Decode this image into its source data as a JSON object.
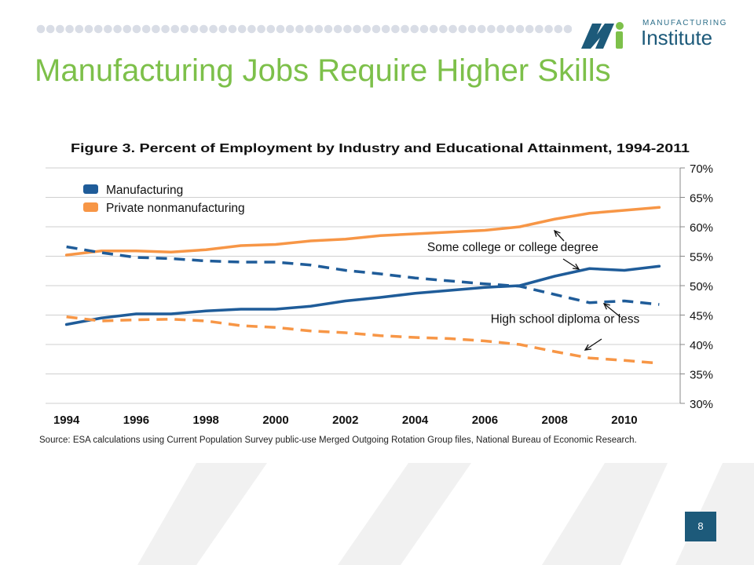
{
  "slide": {
    "title": "Manufacturing Jobs Require Higher Skills",
    "page_number": "8"
  },
  "logo": {
    "sub": "MANUFACTURING",
    "main": "Institute"
  },
  "colors": {
    "title_green": "#7dc04a",
    "navy": "#1d5a7a",
    "manufacturing": "#1f5c99",
    "nonmanufacturing": "#f79646",
    "dots": "#d9dde6",
    "bg_shapes": "#f1f1f1"
  },
  "chart_data": {
    "type": "line",
    "title": "Figure 3. Percent of Employment by Industry and Educational Attainment, 1994-2011",
    "xlabel": "",
    "ylabel": "",
    "x": [
      1994,
      1995,
      1996,
      1997,
      1998,
      1999,
      2000,
      2001,
      2002,
      2003,
      2004,
      2005,
      2006,
      2007,
      2008,
      2009,
      2010,
      2011
    ],
    "x_ticks": [
      1994,
      1996,
      1998,
      2000,
      2002,
      2004,
      2006,
      2008,
      2010
    ],
    "y_ticks": [
      "30%",
      "35%",
      "40%",
      "45%",
      "50%",
      "55%",
      "60%",
      "65%",
      "70%"
    ],
    "ylim": [
      30,
      70
    ],
    "grid": true,
    "legend": {
      "placement": "top-left",
      "entries": [
        "Manufacturing",
        "Private nonmanufacturing"
      ]
    },
    "series": [
      {
        "name": "Manufacturing",
        "group": "Some college or college degree",
        "style": "solid",
        "color": "#1f5c99",
        "values": [
          43.4,
          44.5,
          45.2,
          45.2,
          45.7,
          46.0,
          46.0,
          46.5,
          47.4,
          48.0,
          48.7,
          49.2,
          49.7,
          50.0,
          51.6,
          52.9,
          52.6,
          53.3
        ]
      },
      {
        "name": "Private nonmanufacturing",
        "group": "Some college or college degree",
        "style": "solid",
        "color": "#f79646",
        "values": [
          55.2,
          55.9,
          55.9,
          55.7,
          56.1,
          56.8,
          57.0,
          57.6,
          57.9,
          58.5,
          58.8,
          59.1,
          59.4,
          60.0,
          61.3,
          62.3,
          62.8,
          63.3
        ]
      },
      {
        "name": "Manufacturing",
        "group": "High school diploma or less",
        "style": "dashed",
        "color": "#1f5c99",
        "values": [
          56.6,
          55.6,
          54.8,
          54.6,
          54.2,
          54.0,
          54.0,
          53.5,
          52.6,
          52.0,
          51.3,
          50.8,
          50.3,
          49.9,
          48.5,
          47.1,
          47.4,
          46.8
        ]
      },
      {
        "name": "Private nonmanufacturing",
        "group": "High school diploma or less",
        "style": "dashed",
        "color": "#f79646",
        "values": [
          44.7,
          44.0,
          44.2,
          44.3,
          44.0,
          43.2,
          42.9,
          42.3,
          42.0,
          41.5,
          41.2,
          41.0,
          40.6,
          40.0,
          38.8,
          37.7,
          37.3,
          36.8
        ]
      }
    ],
    "annotations": [
      {
        "text": "Some college or college degree",
        "x": 2006.8,
        "y": 55.9
      },
      {
        "text": "High school  diploma or less",
        "x": 2008.3,
        "y": 43.7
      }
    ],
    "source": "Source:  ESA calculations using Current Population Survey public-use Merged Outgoing Rotation Group files, National Bureau of Economic Research."
  }
}
